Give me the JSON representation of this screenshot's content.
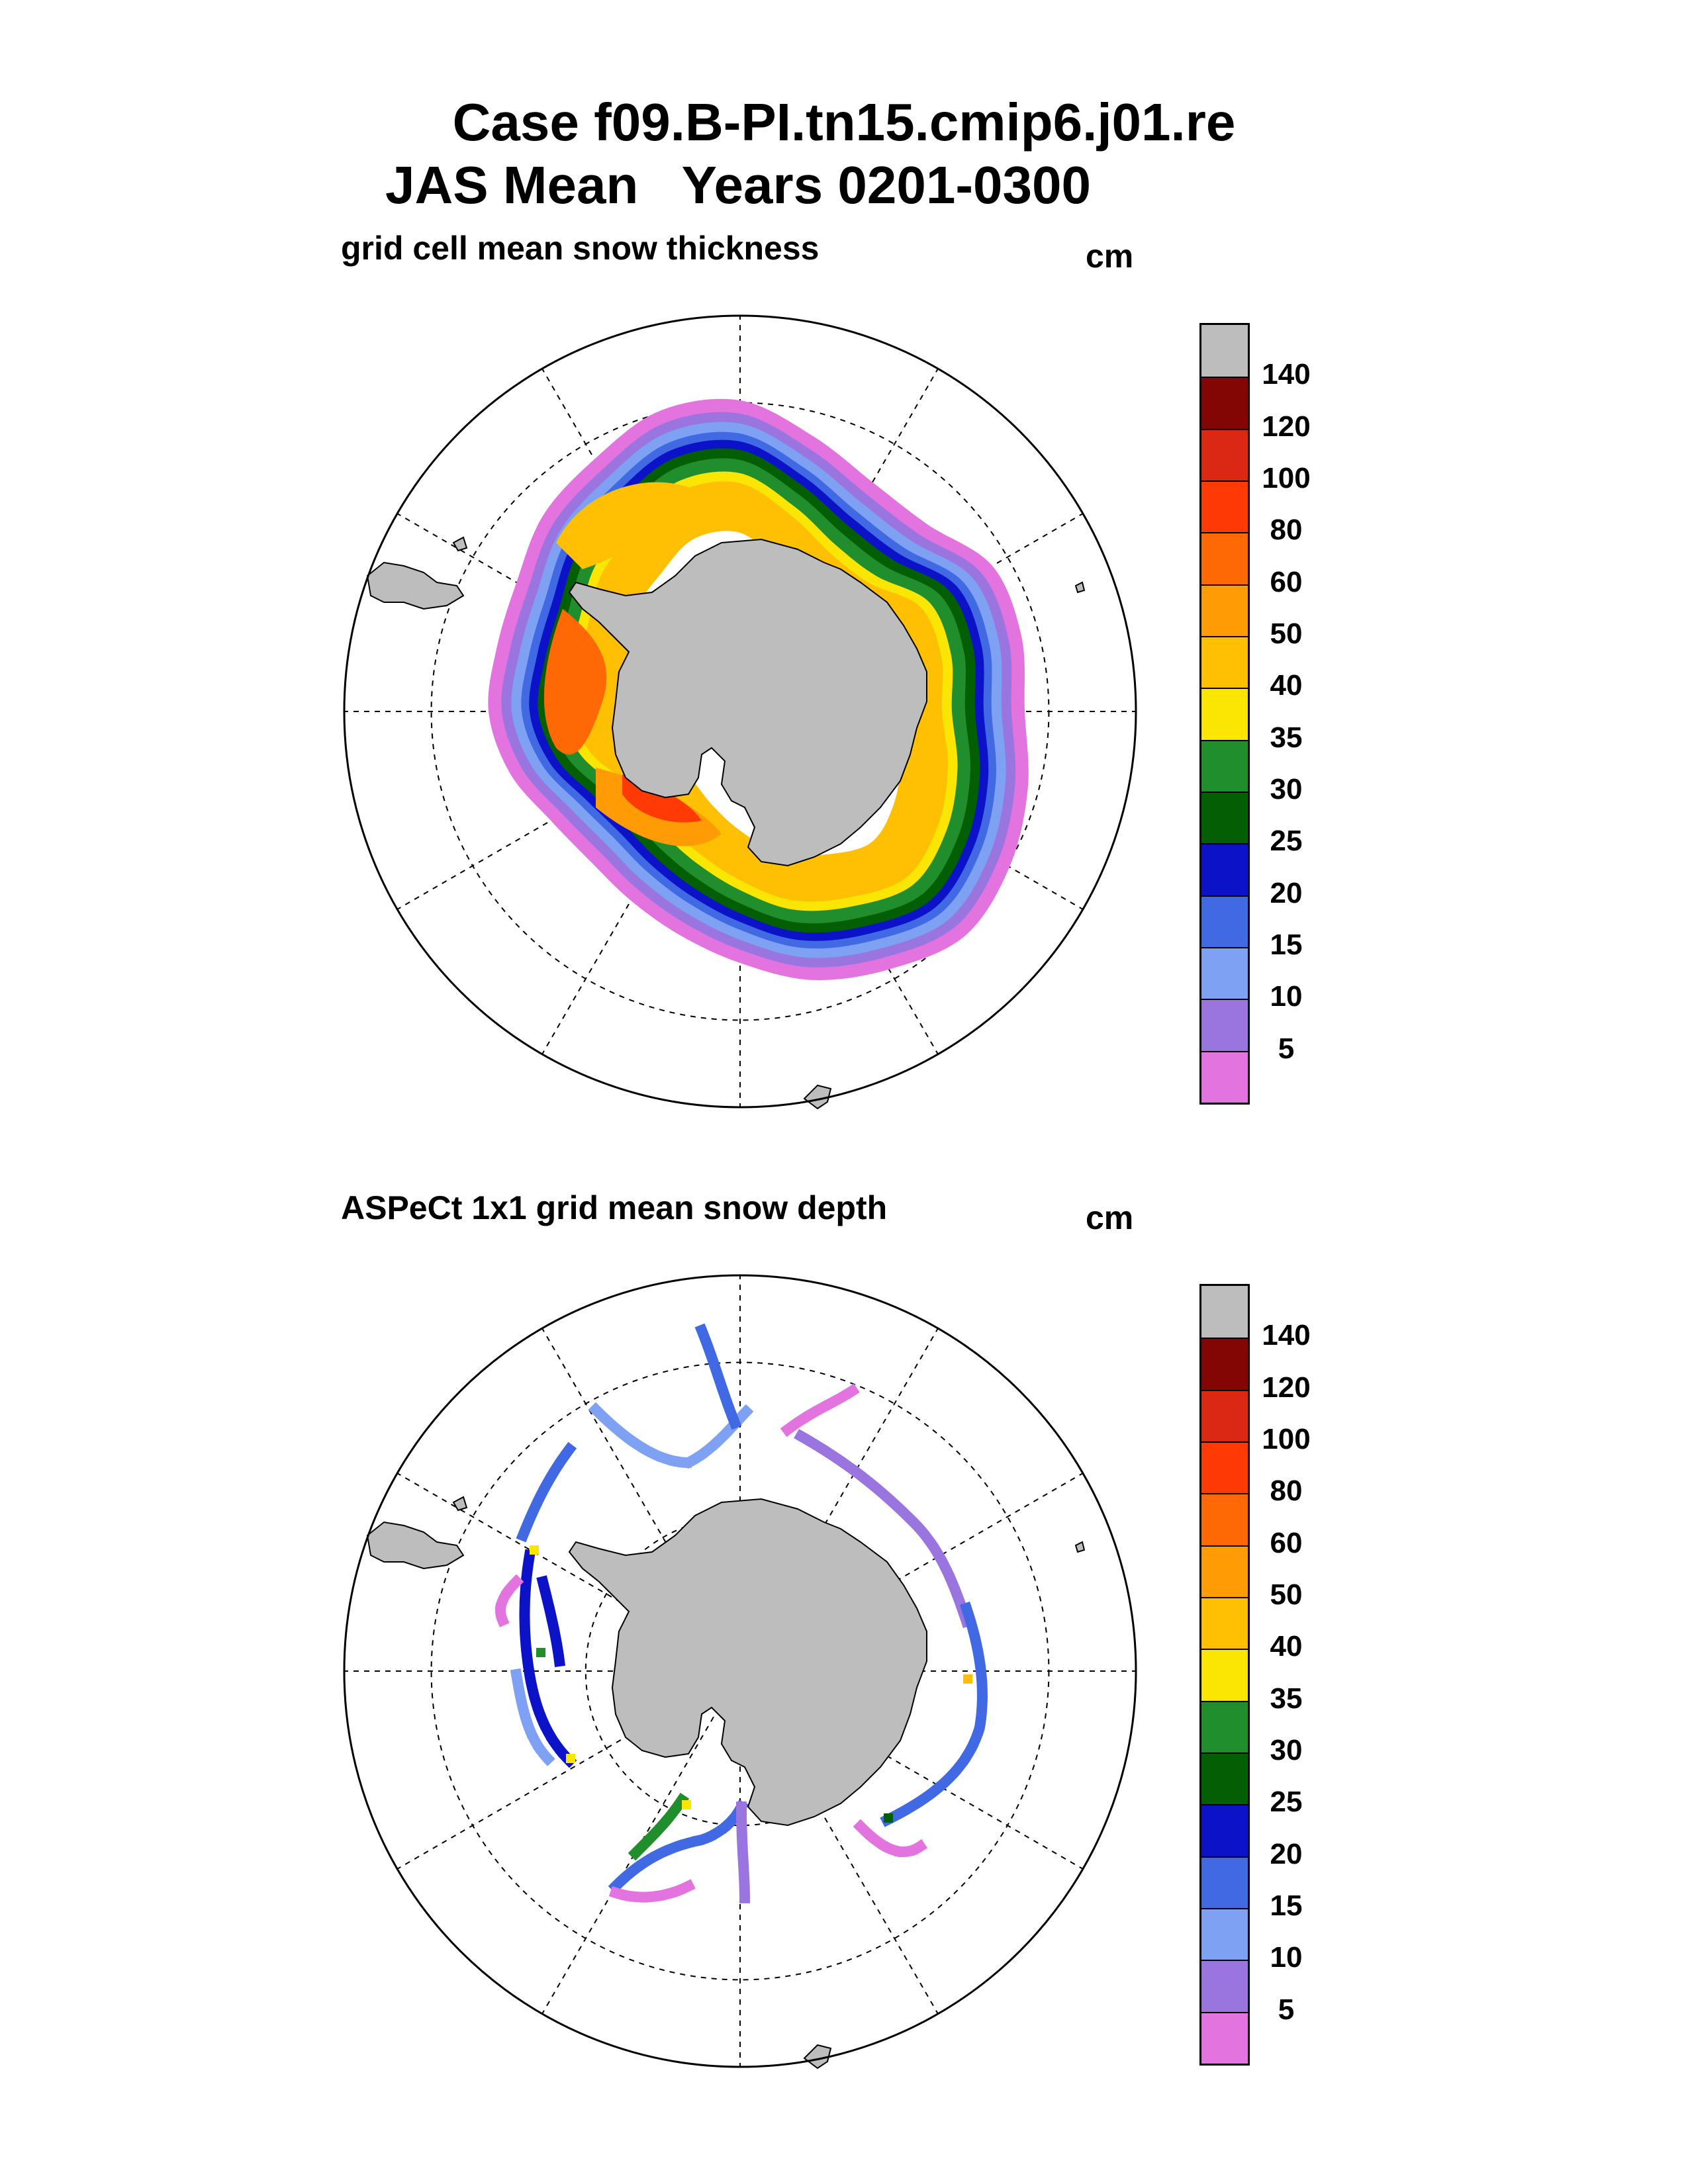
{
  "header": {
    "line1": "Case f09.B-PI.tn15.cmip6.j01.re",
    "line2": "JAS Mean   Years 0201-0300"
  },
  "colorbar": {
    "colors": [
      "#e273df",
      "#9a75e0",
      "#7ea1f3",
      "#4069e3",
      "#0c12c8",
      "#045e04",
      "#208e2c",
      "#fae503",
      "#ffc003",
      "#ff9b04",
      "#ff6905",
      "#ff3a04",
      "#db2812",
      "#830604",
      "#bdbdbd"
    ],
    "labels": [
      "5",
      "10",
      "15",
      "20",
      "25",
      "30",
      "35",
      "40",
      "50",
      "60",
      "80",
      "100",
      "120",
      "140"
    ]
  },
  "panels": [
    {
      "left_label": "grid cell mean snow thickness",
      "unit_label": "cm",
      "field": "model"
    },
    {
      "left_label": "ASPeCt 1x1 grid mean snow depth",
      "unit_label": "cm",
      "field": "obs"
    }
  ]
}
